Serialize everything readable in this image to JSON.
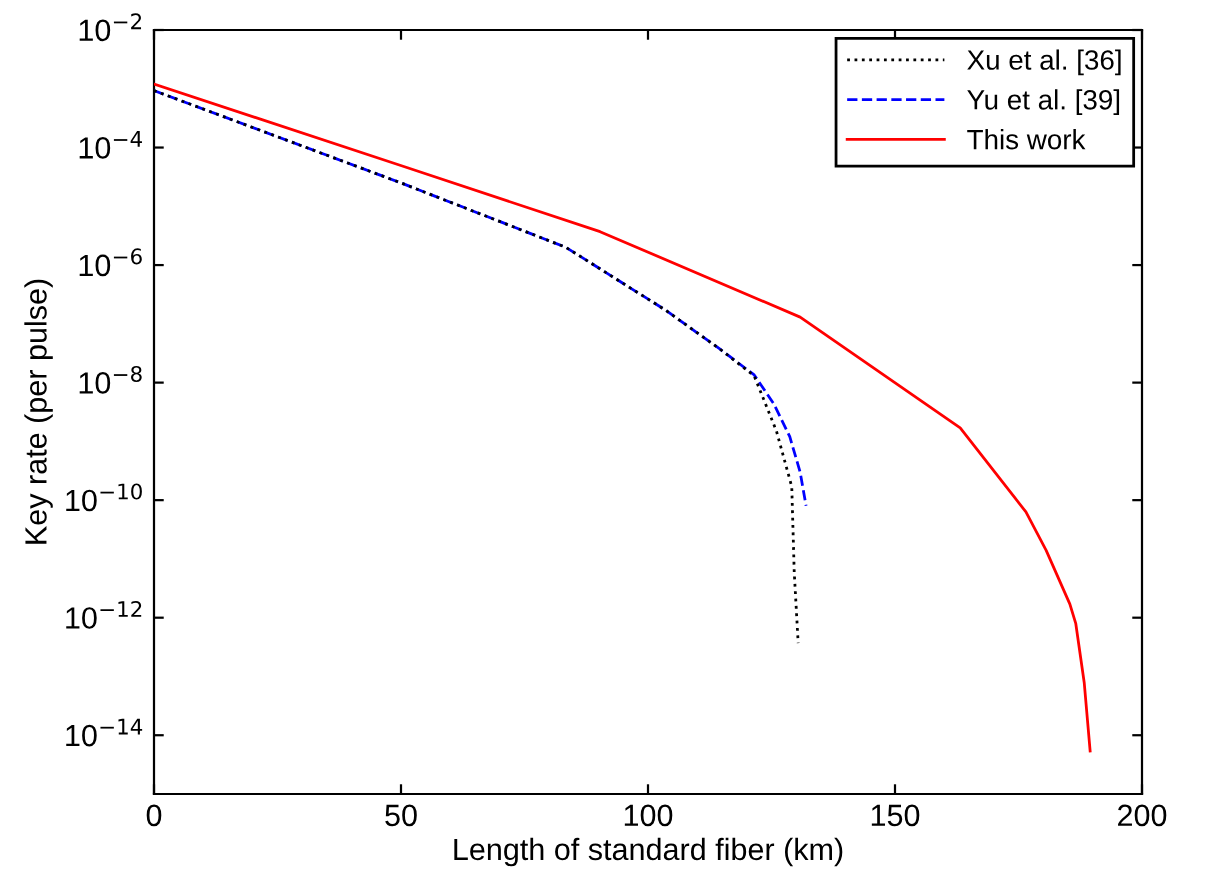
{
  "chart_data": {
    "type": "line",
    "xlabel": "Length of standard fiber (km)",
    "ylabel": "Key rate (per pulse)",
    "log": "y",
    "xlim": [
      0,
      200
    ],
    "xticks": [
      0,
      50,
      100,
      150,
      200
    ],
    "ylim": [
      1e-15,
      0.01
    ],
    "yticks": [
      {
        "value": 0.01,
        "label": "10$^{−2}$"
      },
      {
        "value": 0.0001,
        "label": "10$^{−4}$"
      },
      {
        "value": 1e-06,
        "label": "10$^{−6}$"
      },
      {
        "value": 1e-08,
        "label": "10$^{−8}$"
      },
      {
        "value": 1e-10,
        "label": "10$^{−10}$"
      },
      {
        "value": 1e-12,
        "label": "10$^{−12}$"
      },
      {
        "value": 1e-14,
        "label": "10$^{−14}$"
      }
    ],
    "grid": false,
    "legend": "top right",
    "marker": "none",
    "series": [
      {
        "name": "Xu et al. [36]",
        "color": "#000000",
        "line_style": "dotted",
        "x": [
          0,
          50,
          83.4,
          103.6,
          114.6,
          121.5,
          126,
          129.1,
          129.6,
          130.4
        ],
        "values": [
          0.00093,
          2.5e-05,
          2e-06,
          1.7e-07,
          3.7e-08,
          1.3e-08,
          1.5e-09,
          1.7e-10,
          6e-12,
          3.7e-13
        ]
      },
      {
        "name": "Yu et al. [39]",
        "color": "#0000ff",
        "line_style": "dashed",
        "x": [
          0,
          50,
          83.4,
          103.6,
          114.6,
          121.5,
          125.5,
          128.7,
          130.8,
          132
        ],
        "values": [
          0.00093,
          2.5e-05,
          2e-06,
          1.7e-07,
          3.7e-08,
          1.35e-08,
          4.3e-09,
          1.2e-09,
          3e-10,
          8e-11
        ]
      },
      {
        "name": "This work",
        "color": "#ff0000",
        "line_style": "solid",
        "x": [
          0,
          49.8,
          90.3,
          130.8,
          163.2,
          176.5,
          180.6,
          185.4,
          186.6,
          188.3,
          189.5
        ],
        "values": [
          0.0012,
          5e-05,
          3.7e-06,
          1.3e-07,
          1.7e-09,
          6.3e-11,
          1.4e-11,
          1.7e-12,
          7.9e-13,
          7.9e-14,
          5.4e-15
        ]
      }
    ]
  }
}
